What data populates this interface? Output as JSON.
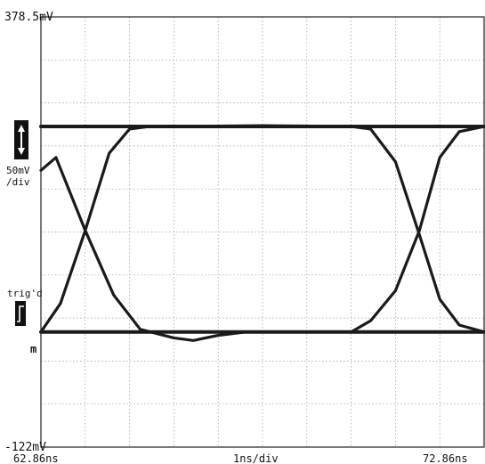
{
  "chart_data": {
    "type": "line",
    "title": "",
    "xlabel": "1ns/div",
    "ylabel": "",
    "x_start_label": "62.86ns",
    "x_end_label": "72.86ns",
    "x_unit": "ns",
    "xlim": [
      62.86,
      72.86
    ],
    "x_divisions": 10,
    "ylim": [
      -122,
      378.5
    ],
    "y_unit": "mV",
    "y_divisions": 10,
    "y_top_label": "378.5mV",
    "y_bottom_label": "-122mV",
    "y_scale_label_line1": "50mV",
    "y_scale_label_line2": "/div",
    "trigger_label": "trig'd",
    "grid": true,
    "trace_color": "#1a1a1a",
    "levels_mv": {
      "high": 251,
      "low": 12
    },
    "series": [
      {
        "x": [
          62.86,
          63.3,
          63.86,
          64.4,
          64.86,
          65.3,
          65.86,
          67.86,
          69.86,
          70.3,
          70.86,
          71.4,
          71.86,
          72.3,
          72.86
        ],
        "y": [
          12,
          45,
          130,
          220,
          248,
          251,
          251,
          252,
          251,
          248,
          210,
          125,
          50,
          20,
          12
        ]
      },
      {
        "x": [
          62.86,
          63.2,
          63.86,
          64.5,
          65.1,
          65.86,
          66.3,
          66.86,
          67.5,
          69.86,
          70.3,
          70.86,
          71.4,
          71.86,
          72.3,
          72.86
        ],
        "y": [
          200,
          215,
          130,
          55,
          15,
          5,
          2,
          8,
          12,
          12,
          25,
          60,
          130,
          215,
          245,
          251
        ]
      },
      {
        "x": [
          62.86,
          65.0,
          67.86,
          70.7,
          72.86
        ],
        "y": [
          251,
          251,
          251,
          251,
          251
        ]
      },
      {
        "x": [
          62.86,
          65.0,
          67.86,
          70.7,
          72.86
        ],
        "y": [
          12,
          12,
          12,
          12,
          12
        ]
      }
    ]
  }
}
